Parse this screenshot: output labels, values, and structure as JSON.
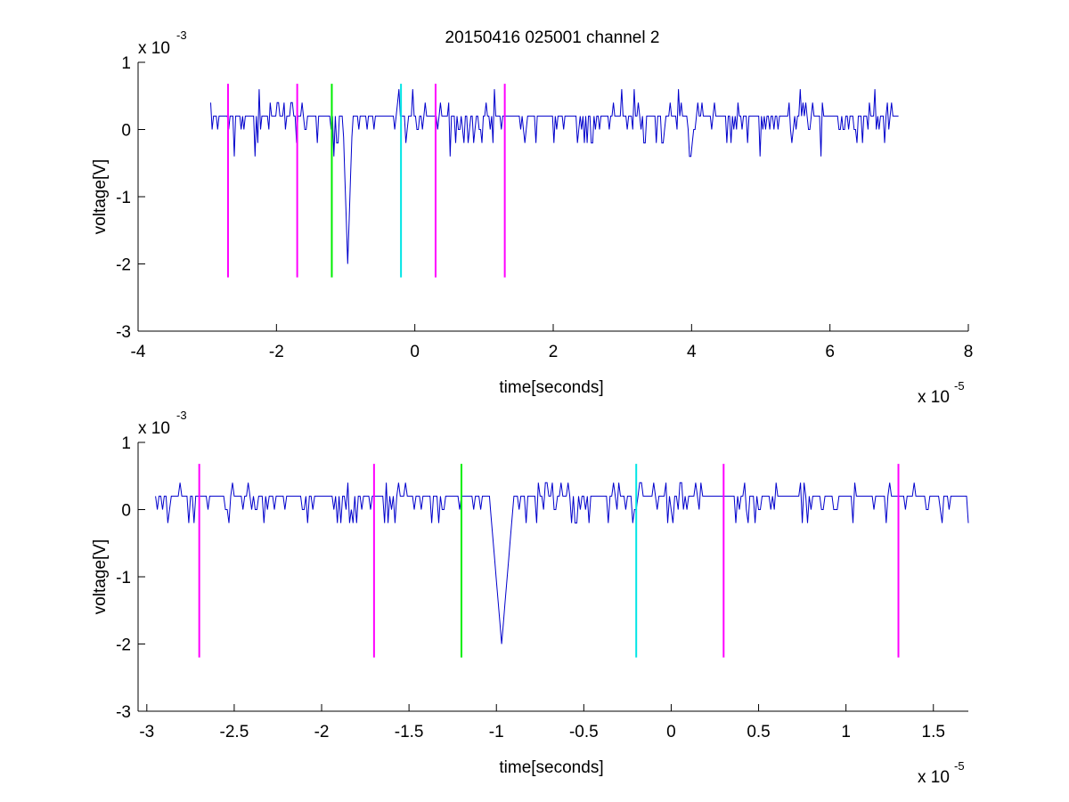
{
  "figure_title": "20150416 025001 channel 2",
  "chart_data": [
    {
      "type": "line",
      "title": "20150416 025001 channel 2",
      "xlabel": "time[seconds]",
      "ylabel": "voltage[V]",
      "x_exponent_label": "x 10",
      "x_exponent": "-5",
      "y_exponent_label": "x 10",
      "y_exponent": "-3",
      "xlim": [
        -4,
        8
      ],
      "ylim": [
        -3,
        1
      ],
      "xticks": [
        -4,
        -2,
        0,
        2,
        4,
        6,
        8
      ],
      "xtick_labels": [
        "-4",
        "-2",
        "0",
        "2",
        "4",
        "6",
        "8"
      ],
      "yticks": [
        -3,
        -2,
        -1,
        0,
        1
      ],
      "ytick_labels": [
        "-3",
        "-2",
        "-1",
        "0",
        "1"
      ],
      "grid": false,
      "signal": {
        "color": "#0000cc",
        "x_range": [
          -2.95,
          7.0
        ],
        "baseline": 0.2,
        "spike": {
          "x": -0.97,
          "y": -2.0
        },
        "min_noise": -0.4,
        "max_noise": 0.6
      },
      "markers": [
        {
          "x": -2.7,
          "y_range": [
            -2.2,
            0.68
          ],
          "color": "#ff00ff"
        },
        {
          "x": -1.7,
          "y_range": [
            -2.2,
            0.68
          ],
          "color": "#ff00ff"
        },
        {
          "x": -1.2,
          "y_range": [
            -2.2,
            0.68
          ],
          "color": "#00ee00"
        },
        {
          "x": -0.2,
          "y_range": [
            -2.2,
            0.68
          ],
          "color": "#00e5e5"
        },
        {
          "x": 0.3,
          "y_range": [
            -2.2,
            0.68
          ],
          "color": "#ff00ff"
        },
        {
          "x": 1.3,
          "y_range": [
            -2.2,
            0.68
          ],
          "color": "#ff00ff"
        }
      ]
    },
    {
      "type": "line",
      "title": "",
      "xlabel": "time[seconds]",
      "ylabel": "voltage[V]",
      "x_exponent_label": "x 10",
      "x_exponent": "-5",
      "y_exponent_label": "x 10",
      "y_exponent": "-3",
      "xlim": [
        -3.05,
        1.7
      ],
      "ylim": [
        -3,
        1
      ],
      "xticks": [
        -3,
        -2.5,
        -2,
        -1.5,
        -1,
        -0.5,
        0,
        0.5,
        1,
        1.5
      ],
      "xtick_labels": [
        "-3",
        "-2.5",
        "-2",
        "-1.5",
        "-1",
        "-0.5",
        "0",
        "0.5",
        "1",
        "1.5"
      ],
      "yticks": [
        -3,
        -2,
        -1,
        0,
        1
      ],
      "ytick_labels": [
        "-3",
        "-2",
        "-1",
        "0",
        "1"
      ],
      "grid": false,
      "signal": {
        "color": "#0000cc",
        "x_range": [
          -2.95,
          1.7
        ],
        "baseline": 0.2,
        "spike": {
          "x": -0.97,
          "y": -2.0
        },
        "min_noise": -0.2,
        "max_noise": 0.4
      },
      "markers": [
        {
          "x": -2.7,
          "y_range": [
            -2.2,
            0.68
          ],
          "color": "#ff00ff"
        },
        {
          "x": -1.7,
          "y_range": [
            -2.2,
            0.68
          ],
          "color": "#ff00ff"
        },
        {
          "x": -1.2,
          "y_range": [
            -2.2,
            0.68
          ],
          "color": "#00ee00"
        },
        {
          "x": -0.2,
          "y_range": [
            -2.2,
            0.68
          ],
          "color": "#00e5e5"
        },
        {
          "x": 0.3,
          "y_range": [
            -2.2,
            0.68
          ],
          "color": "#ff00ff"
        },
        {
          "x": 1.3,
          "y_range": [
            -2.2,
            0.68
          ],
          "color": "#ff00ff"
        }
      ]
    }
  ]
}
